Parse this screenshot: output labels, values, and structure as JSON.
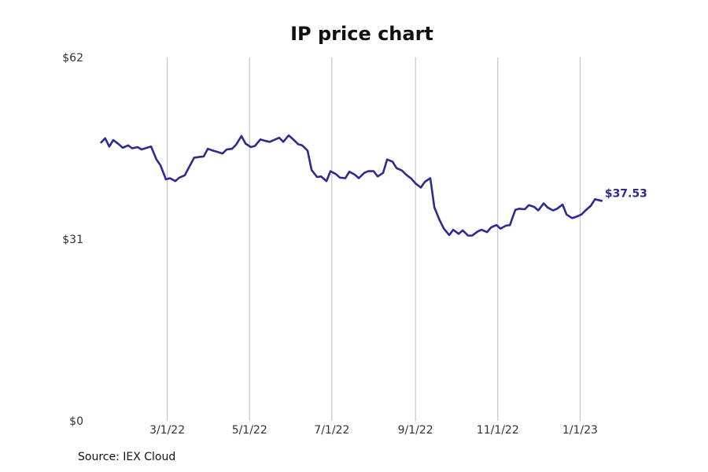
{
  "chart_data": {
    "type": "line",
    "title": "IP price chart",
    "xlabel": "",
    "ylabel": "",
    "x_tick_labels": [
      {
        "date": "2022-03-01",
        "label": "3/1/22"
      },
      {
        "date": "2022-05-01",
        "label": "5/1/22"
      },
      {
        "date": "2022-07-01",
        "label": "7/1/22"
      },
      {
        "date": "2022-09-01",
        "label": "9/1/22"
      },
      {
        "date": "2022-11-01",
        "label": "11/1/22"
      },
      {
        "date": "2023-01-01",
        "label": "1/1/23"
      }
    ],
    "y_ticks": [
      {
        "value": 0,
        "label": "$0"
      },
      {
        "value": 31,
        "label": "$31"
      },
      {
        "value": 62,
        "label": "$62"
      }
    ],
    "ylim": [
      0,
      62
    ],
    "xlim": [
      "2022-01-06",
      "2023-02-24"
    ],
    "grid": "vertical",
    "line_color": "#2e2a8f",
    "last_value_label": "$37.53",
    "series": [
      {
        "x": [
          "2022-01-11",
          "2022-01-14",
          "2022-01-17",
          "2022-01-20",
          "2022-01-24",
          "2022-01-27",
          "2022-01-31",
          "2022-02-03",
          "2022-02-07",
          "2022-02-10",
          "2022-02-14",
          "2022-02-17",
          "2022-02-21",
          "2022-02-24",
          "2022-02-28",
          "2022-03-03",
          "2022-03-07",
          "2022-03-10",
          "2022-03-14",
          "2022-03-17",
          "2022-03-21",
          "2022-03-24",
          "2022-03-28",
          "2022-03-31",
          "2022-04-04",
          "2022-04-07",
          "2022-04-11",
          "2022-04-14",
          "2022-04-18",
          "2022-04-21",
          "2022-04-25",
          "2022-04-28",
          "2022-05-02",
          "2022-05-05",
          "2022-05-09",
          "2022-05-12",
          "2022-05-16",
          "2022-05-19",
          "2022-05-23",
          "2022-05-26",
          "2022-05-30",
          "2022-06-02",
          "2022-06-06",
          "2022-06-09",
          "2022-06-13",
          "2022-06-16",
          "2022-06-20",
          "2022-06-23",
          "2022-06-27",
          "2022-06-30",
          "2022-07-04",
          "2022-07-07",
          "2022-07-11",
          "2022-07-14",
          "2022-07-18",
          "2022-07-21",
          "2022-07-25",
          "2022-07-28",
          "2022-08-01",
          "2022-08-04",
          "2022-08-08",
          "2022-08-11",
          "2022-08-15",
          "2022-08-18",
          "2022-08-22",
          "2022-08-25",
          "2022-08-29",
          "2022-09-01",
          "2022-09-05",
          "2022-09-08",
          "2022-09-12",
          "2022-09-15",
          "2022-09-19",
          "2022-09-22",
          "2022-09-26",
          "2022-09-29",
          "2022-10-03",
          "2022-10-06",
          "2022-10-10",
          "2022-10-13",
          "2022-10-17",
          "2022-10-20",
          "2022-10-24",
          "2022-10-27",
          "2022-10-31",
          "2022-11-03",
          "2022-11-07",
          "2022-11-10",
          "2022-11-14",
          "2022-11-17",
          "2022-11-21",
          "2022-11-24",
          "2022-11-28",
          "2022-12-01",
          "2022-12-05",
          "2022-12-08",
          "2022-12-12",
          "2022-12-15",
          "2022-12-19",
          "2022-12-22",
          "2022-12-26",
          "2022-12-29",
          "2023-01-02",
          "2023-01-05",
          "2023-01-09",
          "2023-01-12",
          "2023-01-17"
        ],
        "y": [
          47.5,
          48.2,
          46.8,
          47.9,
          47.2,
          46.6,
          47.0,
          46.5,
          46.7,
          46.3,
          46.6,
          46.8,
          44.6,
          43.6,
          41.2,
          41.4,
          40.9,
          41.5,
          41.9,
          43.2,
          44.9,
          45.0,
          45.1,
          46.4,
          46.1,
          45.9,
          45.6,
          46.3,
          46.4,
          47.1,
          48.6,
          47.3,
          46.7,
          46.9,
          48.0,
          47.8,
          47.6,
          47.9,
          48.3,
          47.6,
          48.7,
          48.1,
          47.2,
          47.0,
          46.1,
          42.8,
          41.6,
          41.7,
          40.9,
          42.6,
          42.1,
          41.5,
          41.4,
          42.5,
          42.0,
          41.4,
          42.3,
          42.6,
          42.6,
          41.7,
          42.3,
          44.6,
          44.2,
          43.1,
          42.7,
          42.0,
          41.3,
          40.5,
          39.8,
          40.8,
          41.4,
          36.4,
          34.2,
          32.8,
          31.7,
          32.6,
          31.9,
          32.5,
          31.6,
          31.6,
          32.3,
          32.6,
          32.2,
          33.0,
          33.4,
          32.8,
          33.3,
          33.4,
          36.0,
          36.2,
          36.1,
          36.8,
          36.5,
          35.9,
          37.1,
          36.4,
          35.9,
          36.2,
          36.9,
          35.2,
          34.6,
          34.8,
          35.2,
          35.9,
          36.7,
          37.8,
          37.53
        ]
      }
    ]
  },
  "footer": {
    "source": "Source: IEX Cloud"
  }
}
